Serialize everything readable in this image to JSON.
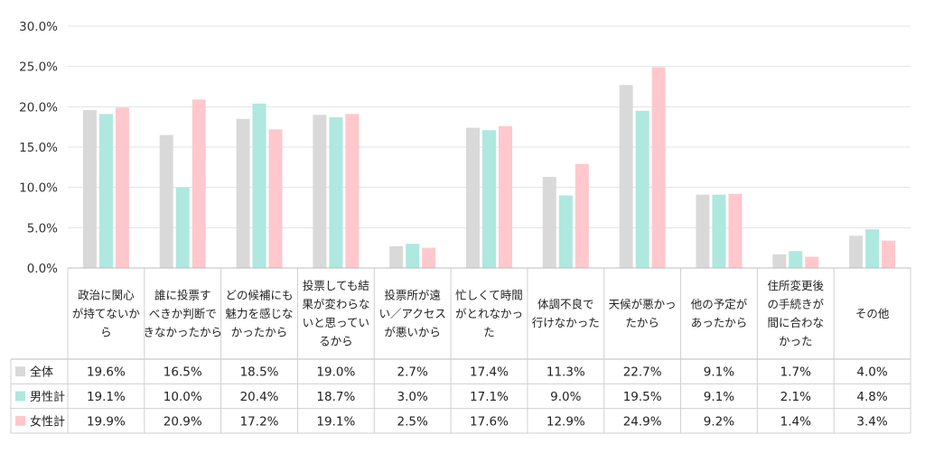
{
  "chart_data": {
    "type": "bar",
    "ylim": [
      0,
      30
    ],
    "yticks": [
      "0.0%",
      "5.0%",
      "10.0%",
      "15.0%",
      "20.0%",
      "25.0%",
      "30.0%"
    ],
    "grid": true,
    "categories": [
      [
        "政治に関心",
        "が持てないか",
        "ら"
      ],
      [
        "誰に投票す",
        "べきか判断で",
        "きなかったから"
      ],
      [
        "どの候補にも",
        "魅力を感じな",
        "かったから"
      ],
      [
        "投票しても結",
        "果が変わらな",
        "いと思ってい",
        "るから"
      ],
      [
        "投票所が遠",
        "い／アクセス",
        "が悪いから"
      ],
      [
        "忙しくて時間",
        "がとれなかっ",
        "た"
      ],
      [
        "体調不良で",
        "行けなかった"
      ],
      [
        "天候が悪かっ",
        "たから"
      ],
      [
        "他の予定が",
        "あったから"
      ],
      [
        "住所変更後",
        "の手続きが",
        "間に合わな",
        "かった"
      ],
      [
        "その他"
      ]
    ],
    "series": [
      {
        "name": "全体",
        "color": "#d9d9d9",
        "values": [
          19.6,
          16.5,
          18.5,
          19.0,
          2.7,
          17.4,
          11.3,
          22.7,
          9.1,
          1.7,
          4.0
        ],
        "labels": [
          "19.6%",
          "16.5%",
          "18.5%",
          "19.0%",
          "2.7%",
          "17.4%",
          "11.3%",
          "22.7%",
          "9.1%",
          "1.7%",
          "4.0%"
        ]
      },
      {
        "name": "男性計",
        "color": "#aee8df",
        "values": [
          19.1,
          10.0,
          20.4,
          18.7,
          3.0,
          17.1,
          9.0,
          19.5,
          9.1,
          2.1,
          4.8
        ],
        "labels": [
          "19.1%",
          "10.0%",
          "20.4%",
          "18.7%",
          "3.0%",
          "17.1%",
          "9.0%",
          "19.5%",
          "9.1%",
          "2.1%",
          "4.8%"
        ]
      },
      {
        "name": "女性計",
        "color": "#ffc8cc",
        "values": [
          19.9,
          20.9,
          17.2,
          19.1,
          2.5,
          17.6,
          12.9,
          24.9,
          9.2,
          1.4,
          3.4
        ],
        "labels": [
          "19.9%",
          "20.9%",
          "17.2%",
          "19.1%",
          "2.5%",
          "17.6%",
          "12.9%",
          "24.9%",
          "9.2%",
          "1.4%",
          "3.4%"
        ]
      }
    ]
  }
}
